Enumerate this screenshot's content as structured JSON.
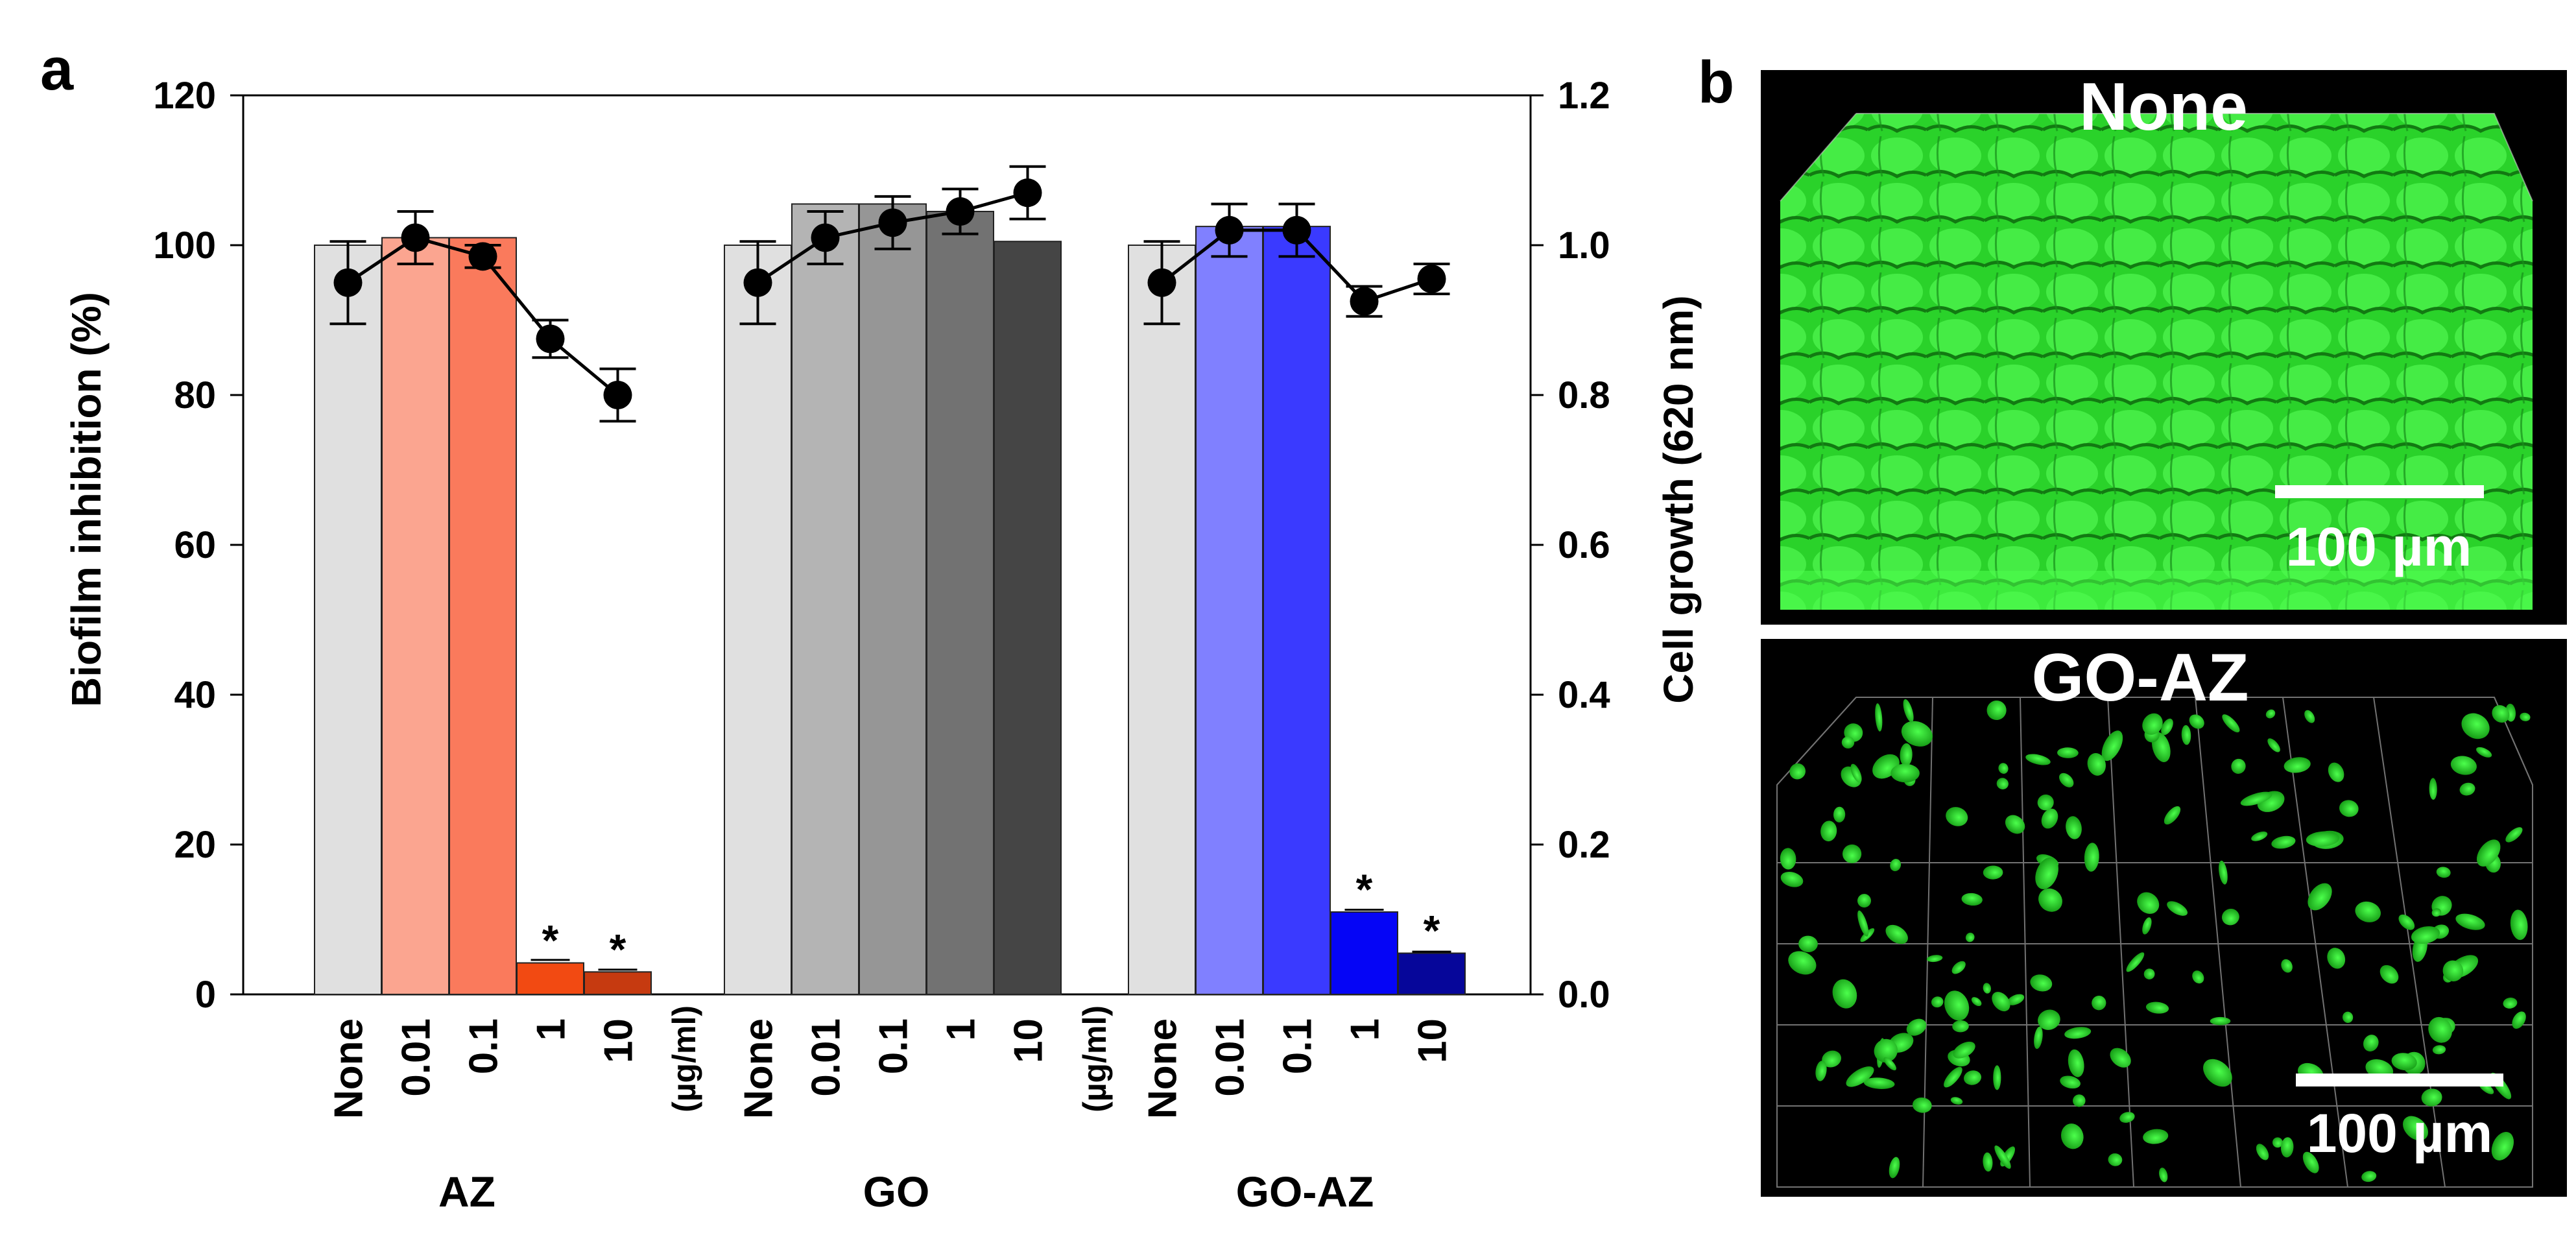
{
  "panel_a_label": "a",
  "panel_b_label": "b",
  "colors": {
    "AZ": [
      "#e0e0e0",
      "#fba590",
      "#fa7a5c",
      "#f24a12",
      "#c63a10"
    ],
    "GO": [
      "#e0e0e0",
      "#b4b4b4",
      "#969696",
      "#727272",
      "#454545"
    ],
    "GO-AZ": [
      "#e0e0e0",
      "#8080ff",
      "#3a3aff",
      "#0505f6",
      "#06069a"
    ],
    "line": "#000000",
    "biofilm_green": "#2fe02f"
  },
  "chart_data": {
    "type": "bar",
    "title": "",
    "ylabel": "Biofilm inhibition (%)",
    "y2label": "Cell growth (620 nm)",
    "ylim": [
      0,
      120
    ],
    "y2lim": [
      0,
      1.2
    ],
    "yticks": [
      "0",
      "20",
      "40",
      "60",
      "80",
      "100",
      "120"
    ],
    "y2ticks": [
      "0.0",
      "0.2",
      "0.4",
      "0.6",
      "0.8",
      "1.0",
      "1.2"
    ],
    "unit_label": "(µg/ml)",
    "groups": [
      {
        "name": "AZ",
        "categories": [
          "None",
          "0.01",
          "0.1",
          "1",
          "10"
        ],
        "bar_values": [
          100,
          101,
          101,
          4.2,
          3.0
        ],
        "bar_errors": [
          0,
          0,
          0,
          0.4,
          0.3
        ],
        "growth_values": [
          0.95,
          1.01,
          0.985,
          0.875,
          0.8
        ],
        "growth_errors": [
          0.055,
          0.035,
          0.015,
          0.025,
          0.035
        ],
        "significant": [
          false,
          false,
          false,
          true,
          true
        ]
      },
      {
        "name": "GO",
        "categories": [
          "None",
          "0.01",
          "0.1",
          "1",
          "10"
        ],
        "bar_values": [
          100,
          105.5,
          105.5,
          104.5,
          100.5
        ],
        "bar_errors": [
          0,
          0,
          0,
          0,
          0
        ],
        "growth_values": [
          0.95,
          1.01,
          1.03,
          1.045,
          1.07
        ],
        "growth_errors": [
          0.055,
          0.035,
          0.035,
          0.03,
          0.035
        ],
        "significant": [
          false,
          false,
          false,
          false,
          false
        ]
      },
      {
        "name": "GO-AZ",
        "categories": [
          "None",
          "0.01",
          "0.1",
          "1",
          "10"
        ],
        "bar_values": [
          100,
          102.5,
          102.5,
          11,
          5.5
        ],
        "bar_errors": [
          0,
          0,
          0,
          0.3,
          0.2
        ],
        "growth_values": [
          0.95,
          1.02,
          1.02,
          0.925,
          0.955
        ],
        "growth_errors": [
          0.055,
          0.035,
          0.035,
          0.02,
          0.02
        ],
        "significant": [
          false,
          false,
          false,
          true,
          true
        ]
      }
    ],
    "significance_marker": "*"
  },
  "micrographs": [
    {
      "title": "None",
      "scale_bar": "100 µm"
    },
    {
      "title": "GO-AZ",
      "scale_bar": "100 µm"
    }
  ]
}
